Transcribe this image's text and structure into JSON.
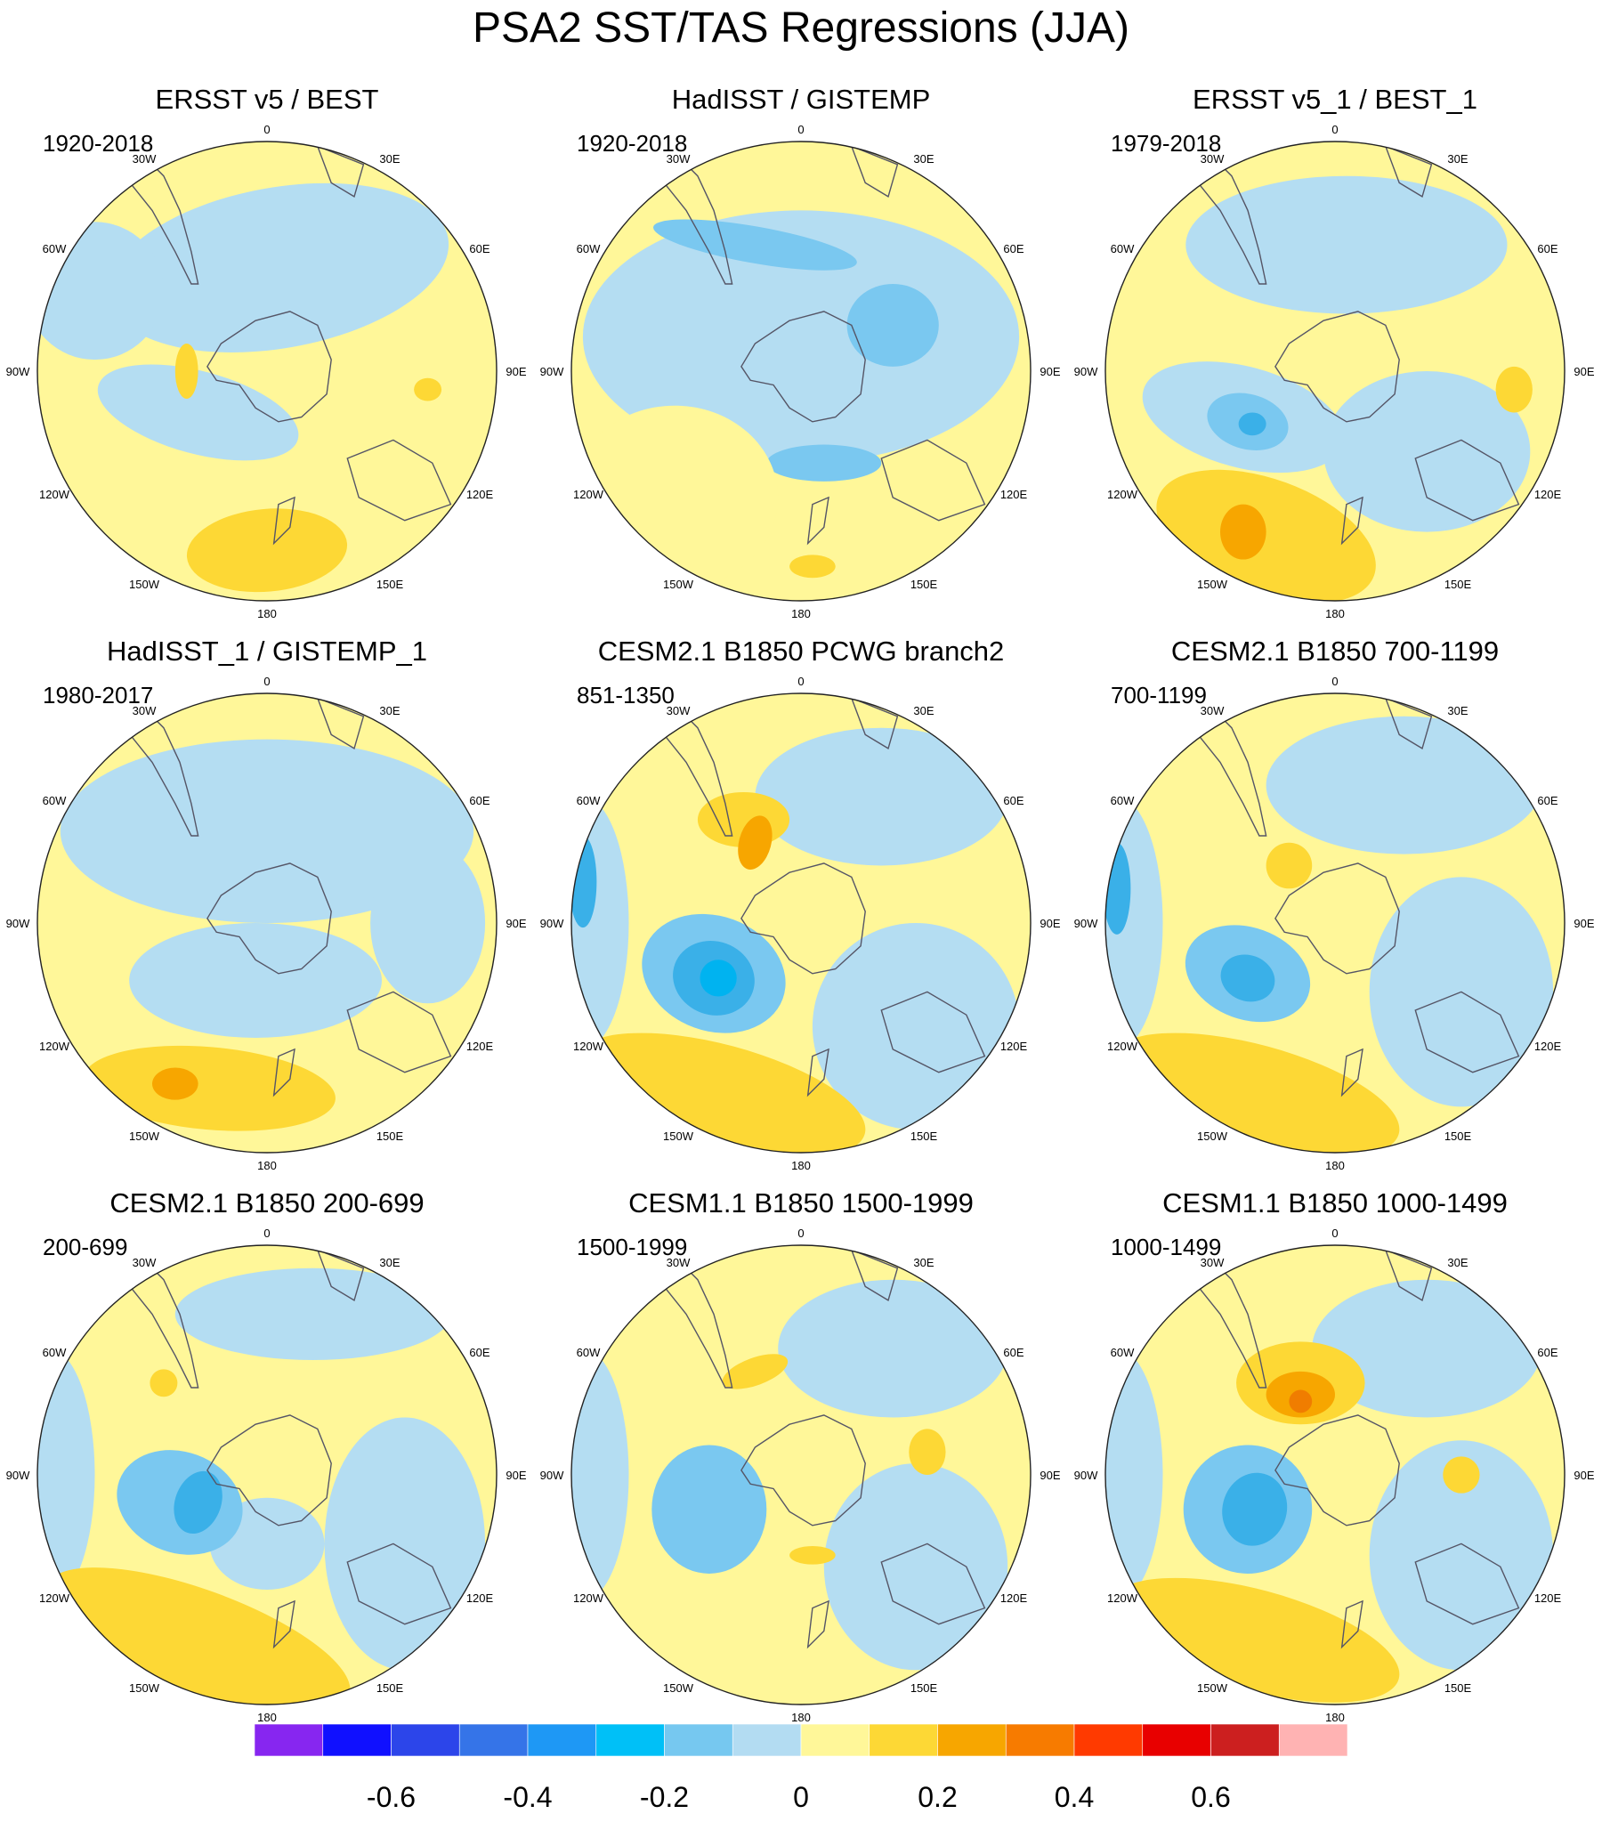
{
  "title": "PSA2 SST/TAS Regressions (JJA)",
  "longitude_labels": [
    "0",
    "30E",
    "60E",
    "90E",
    "120E",
    "150E",
    "180",
    "150W",
    "120W",
    "90W",
    "60W",
    "30W"
  ],
  "palette": {
    "ocean_blue": "#b4ddf2",
    "blue_2": "#7ac8f0",
    "blue_3": "#3ab0e8",
    "blue_4": "#00b3f0",
    "yellow_1": "#fff799",
    "yellow_2": "#fdd835",
    "orange": "#f7a600",
    "dark_orange": "#f07d00",
    "coast": "#555566"
  },
  "chart_data": {
    "type": "polar_contour_map",
    "projection": "south polar stereographic",
    "variable": "SST/TAS regression onto PSA2 index (JJA)",
    "panels": [
      {
        "title": "ERSST v5 / BEST",
        "period": "1920-2018"
      },
      {
        "title": "HadISST / GISTEMP",
        "period": "1920-2018"
      },
      {
        "title": "ERSST v5_1 / BEST_1",
        "period": "1979-2018"
      },
      {
        "title": "HadISST_1 / GISTEMP_1",
        "period": "1980-2017"
      },
      {
        "title": "CESM2.1 B1850 PCWG branch2",
        "period": "851-1350"
      },
      {
        "title": "CESM2.1 B1850 700-1199",
        "period": "700-1199"
      },
      {
        "title": "CESM2.1 B1850 200-699",
        "period": "200-699"
      },
      {
        "title": "CESM1.1 B1850 1500-1999",
        "period": "1500-1999"
      },
      {
        "title": "CESM1.1 B1850 1000-1499",
        "period": "1000-1499"
      }
    ],
    "colorbar": {
      "levels": [
        -0.7,
        -0.6,
        -0.5,
        -0.4,
        -0.3,
        -0.2,
        -0.1,
        0,
        0.1,
        0.2,
        0.3,
        0.4,
        0.5,
        0.6,
        0.7
      ],
      "colors": [
        "#8726f0",
        "#1010ff",
        "#2c45ea",
        "#3574e8",
        "#1e98f5",
        "#00c0f7",
        "#76c8f0",
        "#b3dcf2",
        "#fff799",
        "#fdd835",
        "#f7a600",
        "#f77b00",
        "#ff3a00",
        "#e80000",
        "#cc1f1f",
        "#ffb3b3"
      ],
      "tick_labels": [
        "-0.6",
        "-0.4",
        "-0.2",
        "0",
        "0.2",
        "0.4",
        "0.6"
      ],
      "tick_values": [
        -0.6,
        -0.4,
        -0.2,
        0,
        0.2,
        0.4,
        0.6
      ]
    }
  }
}
